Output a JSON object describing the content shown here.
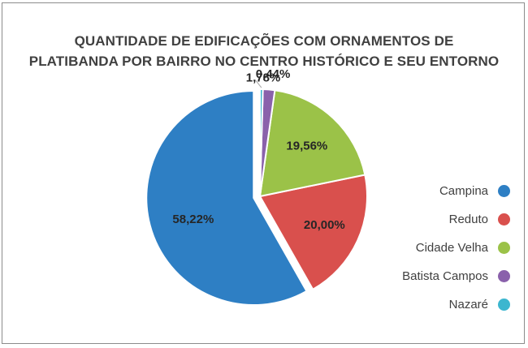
{
  "chart_data": {
    "type": "pie",
    "title_lines": [
      "QUANTIDADE DE EDIFICAÇÕES COM ORNAMENTOS DE",
      "PLATIBANDA POR BAIRRO NO CENTRO HISTÓRICO E SEU ENTORNO"
    ],
    "categories": [
      "Campina",
      "Reduto",
      "Cidade Velha",
      "Batista Campos",
      "Nazaré"
    ],
    "values": [
      58.22,
      20.0,
      19.56,
      1.78,
      0.44
    ],
    "value_labels": [
      "58,22%",
      "20,00%",
      "19,56%",
      "1,78%",
      "0,44%"
    ],
    "colors": [
      "#2e7fc4",
      "#d9504d",
      "#9bc248",
      "#8a61ab",
      "#3cb6cf"
    ],
    "legend_position": "right",
    "start_angle_deg": 0,
    "direction": "counter-clockwise",
    "exploded_slice": "Campina"
  }
}
